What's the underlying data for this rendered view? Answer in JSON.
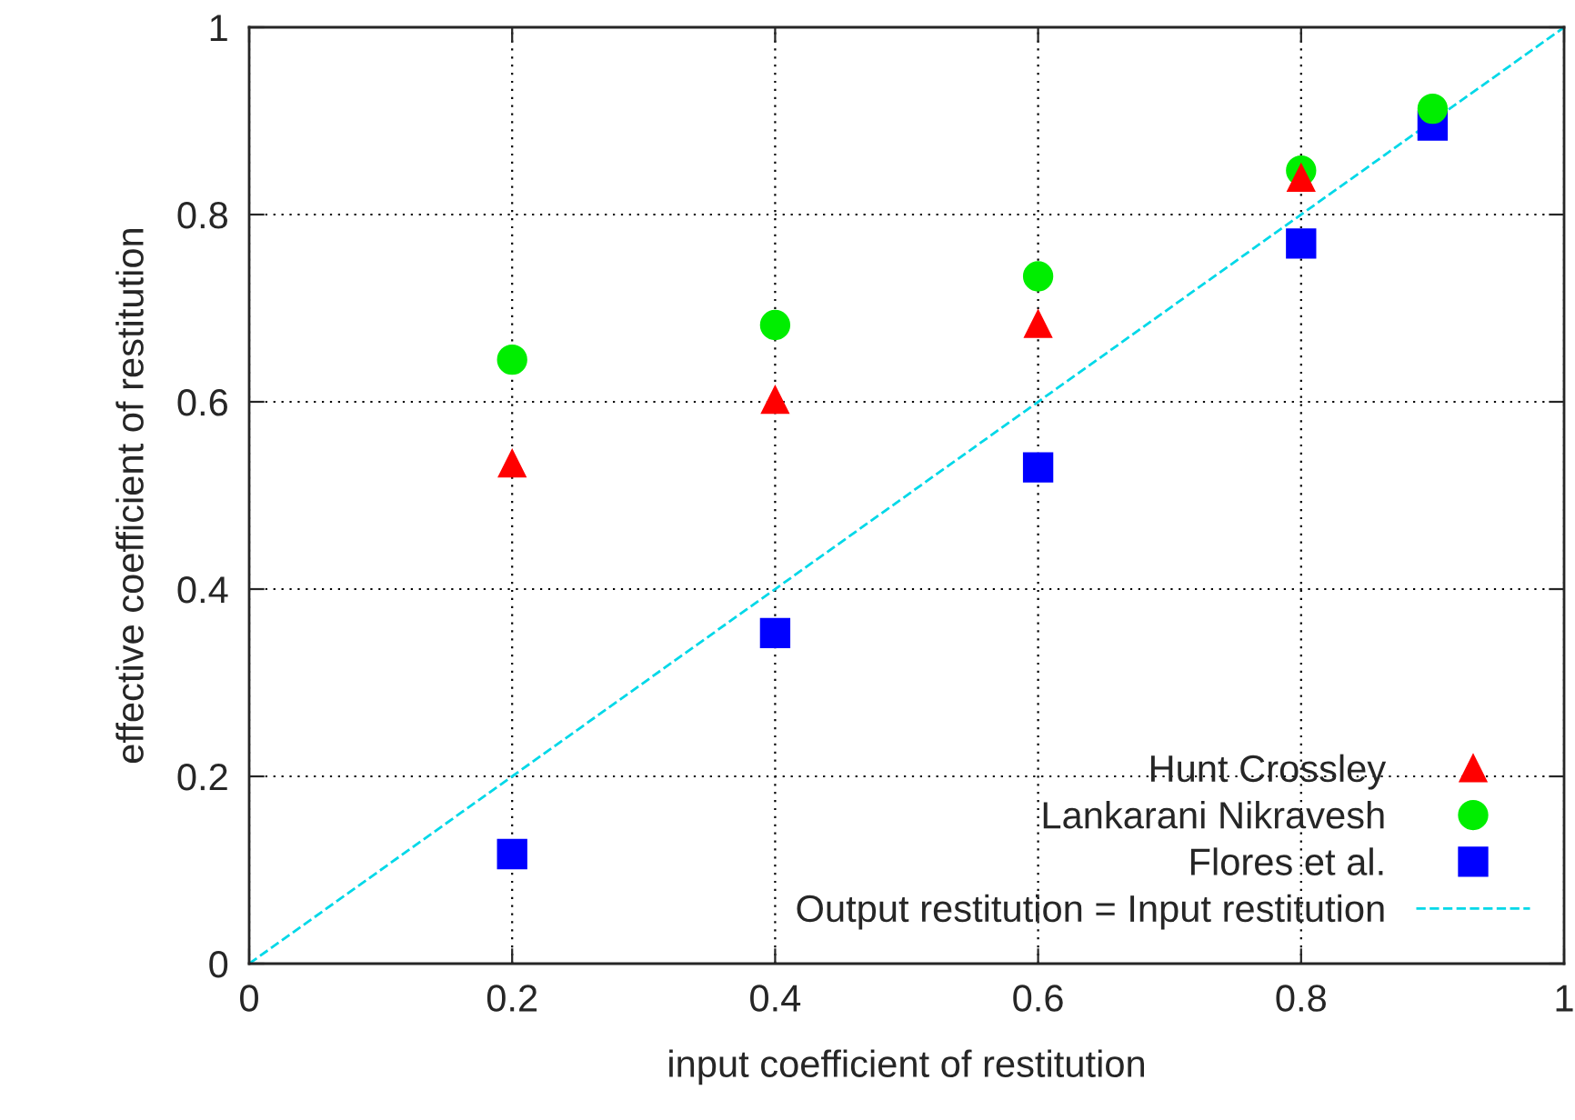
{
  "chart_data": {
    "type": "scatter",
    "xlabel": "input coefficient of restitution",
    "ylabel": "effective coefficient of restitution",
    "x": [
      0.2,
      0.4,
      0.6,
      0.8,
      0.9
    ],
    "series": [
      {
        "name": "Hunt Crossley",
        "color": "#ff0000",
        "marker": "triangle",
        "values": [
          0.534,
          0.602,
          0.683,
          0.839,
          null
        ]
      },
      {
        "name": "Lankarani Nikravesh",
        "color": "#00ee00",
        "marker": "circle",
        "values": [
          0.645,
          0.682,
          0.734,
          0.847,
          0.913
        ]
      },
      {
        "name": "Flores et al.",
        "color": "#0000ff",
        "marker": "square",
        "values": [
          0.117,
          0.353,
          0.53,
          0.769,
          0.895
        ]
      },
      {
        "name": "Output restitution = Input restitution",
        "type": "line",
        "color": "#00d8e8",
        "line_style": "dashed",
        "marker": "none",
        "x": [
          0,
          1
        ],
        "values": [
          0,
          1
        ]
      }
    ],
    "xlim": [
      0,
      1
    ],
    "ylim": [
      0,
      1
    ],
    "xticks": [
      0,
      {
        "value": 0.2,
        "label": "0.2"
      },
      {
        "value": 0.4,
        "label": "0.4"
      },
      {
        "value": 0.6,
        "label": "0.6"
      },
      {
        "value": 0.8,
        "label": "0.8"
      },
      1
    ],
    "yticks": [
      0,
      {
        "value": 0.2,
        "label": "0.2"
      },
      {
        "value": 0.4,
        "label": "0.4"
      },
      {
        "value": 0.6,
        "label": "0.6"
      },
      {
        "value": 0.8,
        "label": "0.8"
      },
      1
    ],
    "grid": true,
    "legend": "bottom right"
  }
}
